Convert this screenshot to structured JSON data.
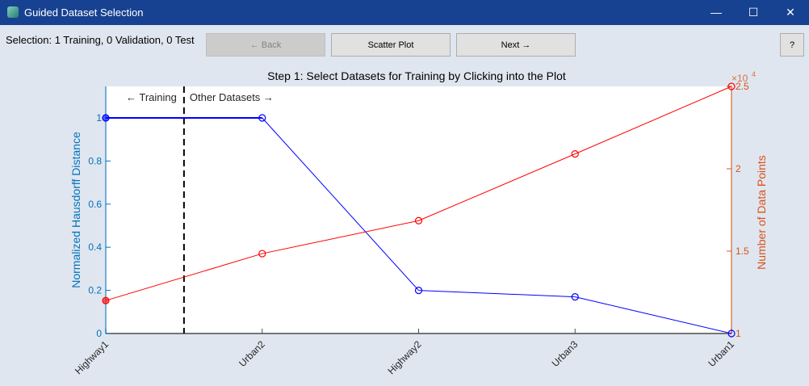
{
  "window": {
    "title": "Guided Dataset Selection",
    "minimize": "—",
    "maximize": "☐",
    "close": "✕"
  },
  "toolbar": {
    "selection_status": "Selection: 1 Training, 0 Validation, 0 Test",
    "back_label": "← Back",
    "scatter_label": "Scatter Plot",
    "next_label": "Next →",
    "help_label": "?"
  },
  "chart_data": {
    "type": "line",
    "title": "Step 1: Select Datasets for Training by Clicking into the Plot",
    "categories": [
      "Highway1",
      "Urban2",
      "Highway2",
      "Urban3",
      "Urban1"
    ],
    "ylabel": "Normalized Hausdorff Distance",
    "ylabel_right": "Number of Data Points",
    "right_exponent": "×10",
    "right_exponent_power": "4",
    "ylim": [
      0,
      1.146
    ],
    "ylim_right": [
      10000,
      25000
    ],
    "yticks": [
      "0",
      "0.2",
      "0.4",
      "0.6",
      "0.8",
      "1"
    ],
    "yticks_right": [
      "1",
      "1.5",
      "2",
      "2.5"
    ],
    "left_color": "#0072bd",
    "right_color": "#d95319",
    "series": [
      {
        "axis": "left",
        "color": "#0000ff",
        "values": [
          1,
          1,
          0.2,
          0.17,
          0
        ]
      },
      {
        "axis": "right",
        "color": "#ff0000",
        "values": [
          12000,
          14850,
          16850,
          20900,
          25000
        ]
      }
    ],
    "selected_index": 0,
    "divider_label_left": "← Training",
    "divider_label_right": "Other Datasets →",
    "grid": false
  }
}
